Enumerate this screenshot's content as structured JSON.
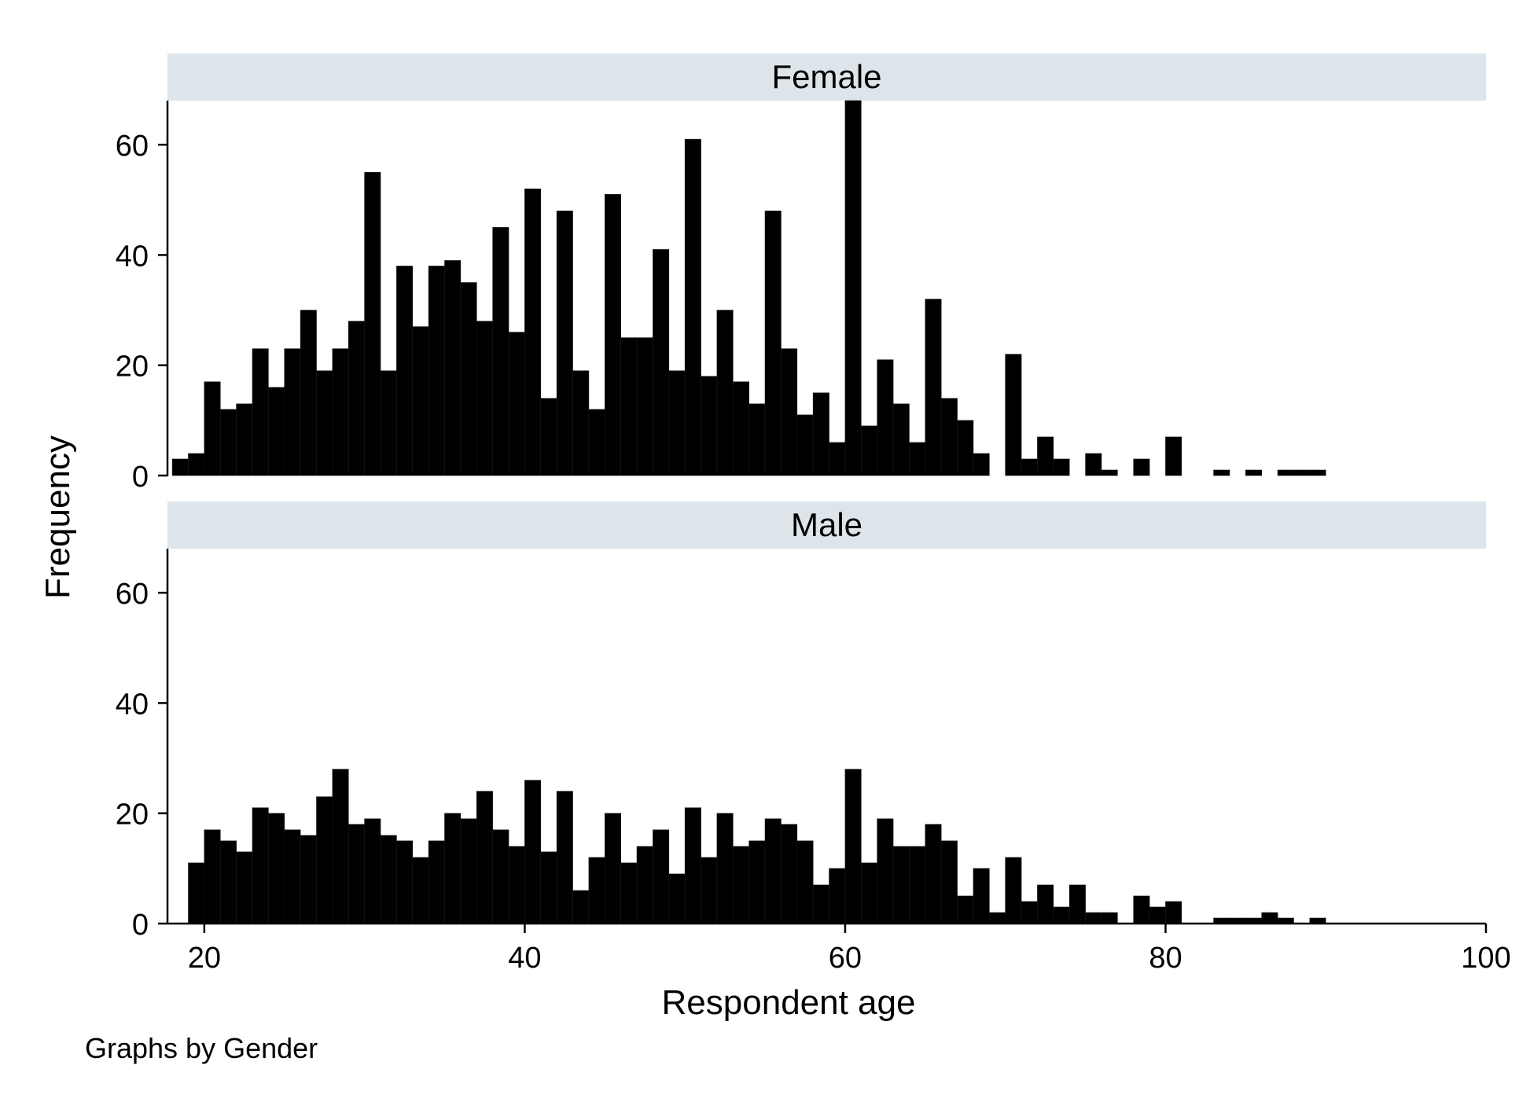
{
  "chart_data": {
    "type": "bar",
    "xlabel": "Respondent age",
    "ylabel": "Frequency",
    "note": "Graphs by Gender",
    "xlim": [
      17.7,
      100
    ],
    "ylim": [
      0,
      68
    ],
    "x_ticks": [
      20,
      40,
      60,
      80,
      100
    ],
    "y_ticks": [
      0,
      20,
      40,
      60
    ],
    "bin_width": 1,
    "colors": {
      "bar": "#000000",
      "strip": "#dde5ea",
      "axis": "#000000",
      "background": "#ffffff"
    },
    "panels": [
      {
        "name": "Female",
        "bin_start": 18,
        "values": [
          3,
          4,
          17,
          12,
          13,
          23,
          16,
          23,
          30,
          19,
          23,
          28,
          55,
          19,
          38,
          27,
          38,
          39,
          35,
          28,
          45,
          26,
          52,
          14,
          48,
          19,
          12,
          51,
          25,
          25,
          41,
          19,
          61,
          18,
          30,
          17,
          13,
          48,
          23,
          11,
          15,
          6,
          68,
          9,
          21,
          13,
          6,
          32,
          14,
          10,
          4,
          0,
          22,
          3,
          7,
          3,
          0,
          4,
          1,
          0,
          3,
          0,
          7,
          0,
          0,
          1,
          0,
          1,
          0,
          1,
          1,
          1
        ]
      },
      {
        "name": "Male",
        "bin_start": 18,
        "values": [
          0,
          11,
          17,
          15,
          13,
          21,
          20,
          17,
          16,
          23,
          28,
          18,
          19,
          16,
          15,
          12,
          15,
          20,
          19,
          24,
          17,
          14,
          26,
          13,
          24,
          6,
          12,
          20,
          11,
          14,
          17,
          9,
          21,
          12,
          20,
          14,
          15,
          19,
          18,
          15,
          7,
          10,
          28,
          11,
          19,
          14,
          14,
          18,
          15,
          5,
          10,
          2,
          12,
          4,
          7,
          3,
          7,
          2,
          2,
          0,
          5,
          3,
          4,
          0,
          0,
          1,
          1,
          1,
          2,
          1,
          0,
          1,
          0,
          0,
          0,
          0,
          0
        ]
      }
    ]
  }
}
